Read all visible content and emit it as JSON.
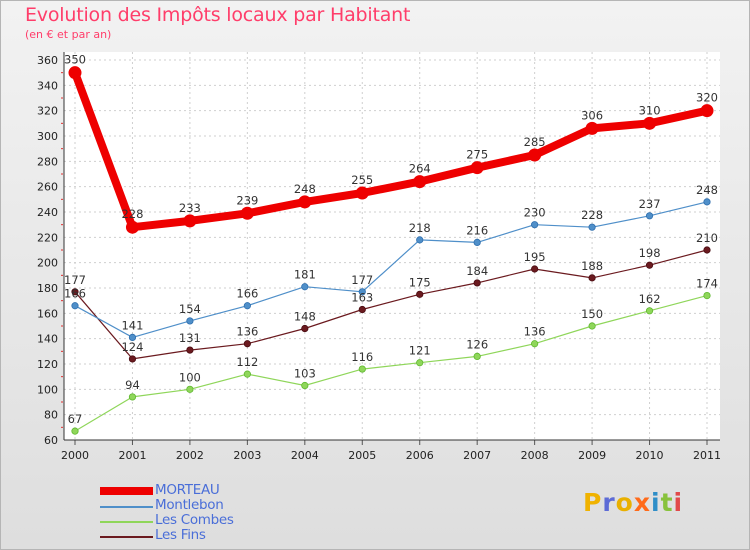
{
  "title": "Evolution des Impôts locaux par Habitant",
  "subtitle": "(en € et par an)",
  "logo_text": "Proxiti",
  "logo_colors": [
    "#f0b200",
    "#5d6bd6",
    "#e9b000",
    "#ff6a1a",
    "#2f8ec8",
    "#88c23c",
    "#e14949"
  ],
  "chart_data": {
    "type": "line",
    "title": "Evolution des Impôts locaux par Habitant",
    "subtitle": "(en € et par an)",
    "xlabel": "",
    "ylabel": "",
    "x": [
      "2000",
      "2001",
      "2002",
      "2003",
      "2004",
      "2005",
      "2006",
      "2007",
      "2008",
      "2009",
      "2010",
      "2011"
    ],
    "ylim": [
      60,
      360
    ],
    "yticks": [
      "60",
      "80",
      "100",
      "120",
      "140",
      "160",
      "180",
      "200",
      "220",
      "240",
      "260",
      "280",
      "300",
      "320",
      "340",
      "360"
    ],
    "grid": true,
    "legend_position": "bottom-left",
    "series": [
      {
        "name": "MORTEAU",
        "color": "#ee0000",
        "values": [
          350,
          228,
          233,
          239,
          248,
          255,
          264,
          275,
          285,
          306,
          310,
          320
        ]
      },
      {
        "name": "Montlebon",
        "color": "#4f8fc9",
        "values": [
          166,
          141,
          154,
          166,
          181,
          177,
          218,
          216,
          230,
          228,
          237,
          248
        ]
      },
      {
        "name": "Les Combes",
        "color": "#8fd65a",
        "values": [
          67,
          94,
          100,
          112,
          103,
          116,
          121,
          126,
          136,
          150,
          162,
          174
        ]
      },
      {
        "name": "Les Fins",
        "color": "#6b1a1f",
        "values": [
          177,
          124,
          131,
          136,
          148,
          163,
          175,
          184,
          195,
          188,
          198,
          210
        ]
      }
    ],
    "labels": [
      [
        "350",
        "228",
        "233",
        "239",
        "248",
        "255",
        "264",
        "275",
        "285",
        "306",
        "310",
        "320"
      ],
      [
        "166",
        "141",
        "154",
        "166",
        "181",
        "177",
        "218",
        "216",
        "230",
        "228",
        "237",
        "248"
      ],
      [
        "67",
        "94",
        "100",
        "112",
        "103",
        "116",
        "121",
        "126",
        "136",
        "150",
        "162",
        "174"
      ],
      [
        "177",
        "124",
        "131",
        "136",
        "148",
        "163",
        "175",
        "184",
        "195",
        "188",
        "198",
        "210"
      ]
    ]
  }
}
